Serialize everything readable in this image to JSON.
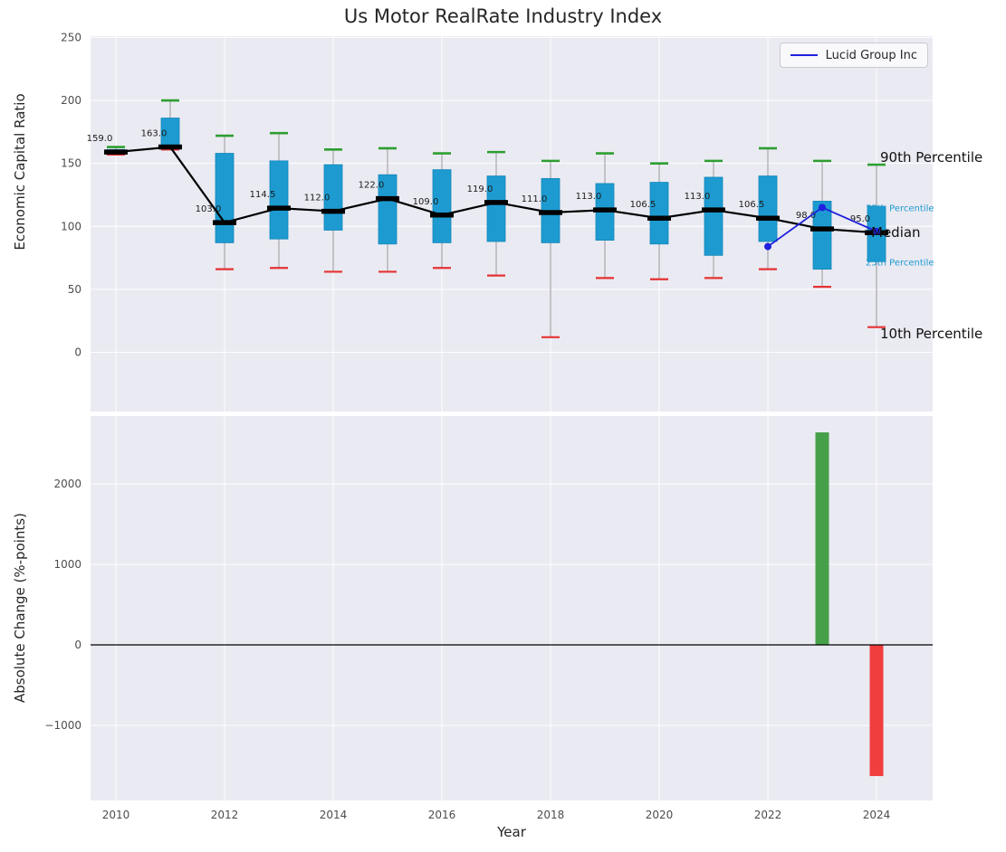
{
  "title": "Us Motor RealRate Industry Index",
  "legend": {
    "label": "Lucid Group Inc"
  },
  "axes": {
    "top_ylabel": "Economic Capital Ratio",
    "bottom_ylabel": "Absolute Change (%-points)",
    "xlabel": "Year"
  },
  "colors": {
    "plot_bg": "#eaeaf2",
    "grid": "#ffffff",
    "box_fill": "#1d9bd1",
    "box_edge": "#1286b8",
    "whisker": "#999999",
    "cap_top": "#2e9e30",
    "cap_bottom": "#e53232",
    "median_dash": "#000000",
    "median_line": "#000000",
    "lucid_line": "#2020dd",
    "bar_positive": "#46a049",
    "bar_negative": "#f03e3e",
    "tick_label": "#4d4d4d",
    "median_label": "#1a1a1a"
  },
  "chart_data": [
    {
      "type": "boxplot+line",
      "title": "Us Motor RealRate Industry Index",
      "ylabel": "Economic Capital Ratio",
      "ylim": [
        -47,
        251
      ],
      "yticks": [
        250,
        200,
        150,
        100,
        50,
        0
      ],
      "ytick_labels": [
        "250",
        "200",
        "150",
        "100",
        "50",
        "0"
      ],
      "years": [
        2010,
        2011,
        2012,
        2013,
        2014,
        2015,
        2016,
        2017,
        2018,
        2019,
        2020,
        2021,
        2022,
        2023,
        2024
      ],
      "median": [
        159,
        163,
        103,
        114.5,
        112,
        122,
        109,
        119,
        111,
        113,
        106.5,
        113,
        106.5,
        98,
        95
      ],
      "median_labels": [
        "159.0",
        "163.0",
        "103.0",
        "114.5",
        "112.0",
        "122.0",
        "109.0",
        "119.0",
        "111.0",
        "113.0",
        "106.5",
        "113.0",
        "106.5",
        "98.0",
        "95.0"
      ],
      "q1": [
        157,
        161,
        87,
        90,
        97,
        86,
        87,
        88,
        87,
        89,
        86,
        77,
        88,
        66,
        72
      ],
      "q3": [
        161,
        186,
        158,
        152,
        149,
        141,
        145,
        140,
        138,
        134,
        135,
        139,
        140,
        120,
        116
      ],
      "p90": [
        163,
        200,
        172,
        174,
        161,
        162,
        158,
        159,
        152,
        158,
        150,
        152,
        162,
        152,
        149
      ],
      "p10": [
        157,
        161,
        66,
        67,
        64,
        64,
        67,
        61,
        12,
        59,
        58,
        59,
        66,
        52,
        20
      ],
      "series": [
        {
          "name": "Lucid Group Inc",
          "x": [
            2022,
            2023,
            2024
          ],
          "y": [
            84,
            115,
            96
          ]
        }
      ],
      "annotations": [
        {
          "label": "90th Percentile",
          "value": 155,
          "style": "major"
        },
        {
          "label": "75th Percentile",
          "value": 114,
          "style": "minor"
        },
        {
          "label": "Median",
          "value": 95,
          "style": "major"
        },
        {
          "label": "25th Percentile",
          "value": 71,
          "style": "minor"
        },
        {
          "label": "10th Percentile",
          "value": 15,
          "style": "major"
        }
      ]
    },
    {
      "type": "bar",
      "ylabel": "Absolute Change (%-points)",
      "xlabel": "Year",
      "ylim": [
        -1933,
        2843
      ],
      "yticks": [
        2000,
        1000,
        0,
        -1000
      ],
      "ytick_labels": [
        "2000",
        "1000",
        "0",
        "−1000"
      ],
      "xticks": [
        2010,
        2012,
        2014,
        2016,
        2018,
        2020,
        2022,
        2024
      ],
      "xtick_labels": [
        "2010",
        "2012",
        "2014",
        "2016",
        "2018",
        "2020",
        "2022",
        "2024"
      ],
      "x": [
        2023,
        2024
      ],
      "values": [
        2640,
        -1630
      ]
    }
  ]
}
